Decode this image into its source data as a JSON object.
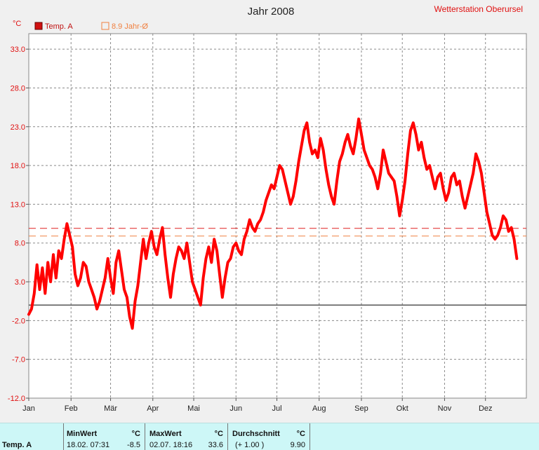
{
  "chart_data": {
    "type": "line",
    "title": "Jahr 2008",
    "station": "Wetterstation Oberursel",
    "yunit": "°C",
    "ylim": [
      -12,
      35
    ],
    "yticks": [
      "33.0",
      "28.0",
      "23.0",
      "18.0",
      "13.0",
      "8.0",
      "3.0",
      "-2.0",
      "-7.0",
      "-12.0"
    ],
    "ytick_values": [
      33,
      28,
      23,
      18,
      13,
      8,
      3,
      -2,
      -7,
      -12
    ],
    "months": [
      "Jan",
      "Feb",
      "Mär",
      "Apr",
      "Mai",
      "Jun",
      "Jul",
      "Aug",
      "Sep",
      "Okt",
      "Nov",
      "Dez"
    ],
    "zero_line": 0,
    "average_line": {
      "label": "8.9 Jahr-Ø",
      "value": 8.9,
      "color": "#f08040"
    },
    "reference_line": {
      "value": 9.9,
      "color": "#e02020"
    },
    "legend_position": "top-left",
    "grid": true,
    "series": [
      {
        "name": "Temp. A",
        "color": "#ff0000",
        "x_unit": "day_of_year",
        "points": [
          [
            1,
            -1.2
          ],
          [
            3,
            -0.5
          ],
          [
            5,
            1.5
          ],
          [
            7,
            5.2
          ],
          [
            9,
            2.0
          ],
          [
            11,
            4.8
          ],
          [
            13,
            1.5
          ],
          [
            15,
            5.5
          ],
          [
            17,
            3.0
          ],
          [
            19,
            6.5
          ],
          [
            21,
            3.5
          ],
          [
            23,
            7.0
          ],
          [
            25,
            6.0
          ],
          [
            27,
            8.5
          ],
          [
            29,
            10.5
          ],
          [
            31,
            9.0
          ],
          [
            33,
            7.5
          ],
          [
            35,
            4.0
          ],
          [
            37,
            2.5
          ],
          [
            39,
            3.5
          ],
          [
            41,
            5.5
          ],
          [
            43,
            5.0
          ],
          [
            45,
            3.0
          ],
          [
            47,
            2.0
          ],
          [
            49,
            1.0
          ],
          [
            51,
            -0.5
          ],
          [
            53,
            0.5
          ],
          [
            55,
            2.0
          ],
          [
            57,
            3.5
          ],
          [
            59,
            6.0
          ],
          [
            61,
            3.5
          ],
          [
            63,
            1.5
          ],
          [
            65,
            5.5
          ],
          [
            67,
            7.0
          ],
          [
            69,
            4.5
          ],
          [
            71,
            2.0
          ],
          [
            73,
            1.0
          ],
          [
            75,
            -1.5
          ],
          [
            77,
            -3.0
          ],
          [
            79,
            0.5
          ],
          [
            81,
            2.5
          ],
          [
            83,
            5.5
          ],
          [
            85,
            8.5
          ],
          [
            87,
            6.0
          ],
          [
            89,
            8.0
          ],
          [
            91,
            9.5
          ],
          [
            93,
            7.5
          ],
          [
            95,
            6.5
          ],
          [
            97,
            8.5
          ],
          [
            99,
            10.0
          ],
          [
            101,
            6.5
          ],
          [
            103,
            3.5
          ],
          [
            105,
            1.0
          ],
          [
            107,
            4.0
          ],
          [
            109,
            6.0
          ],
          [
            111,
            7.5
          ],
          [
            113,
            7.0
          ],
          [
            115,
            6.0
          ],
          [
            117,
            8.0
          ],
          [
            119,
            5.5
          ],
          [
            121,
            3.0
          ],
          [
            123,
            2.0
          ],
          [
            125,
            1.0
          ],
          [
            127,
            0.0
          ],
          [
            129,
            3.5
          ],
          [
            131,
            6.0
          ],
          [
            133,
            7.5
          ],
          [
            135,
            5.5
          ],
          [
            137,
            8.5
          ],
          [
            139,
            7.0
          ],
          [
            141,
            4.0
          ],
          [
            143,
            1.0
          ],
          [
            145,
            3.5
          ],
          [
            147,
            5.5
          ],
          [
            149,
            6.0
          ],
          [
            151,
            7.5
          ],
          [
            153,
            8.0
          ],
          [
            155,
            7.0
          ],
          [
            157,
            6.5
          ],
          [
            159,
            8.5
          ],
          [
            161,
            9.5
          ],
          [
            163,
            11.0
          ],
          [
            165,
            10.0
          ],
          [
            167,
            9.5
          ],
          [
            169,
            10.5
          ],
          [
            171,
            11.0
          ],
          [
            173,
            12.0
          ],
          [
            175,
            13.5
          ],
          [
            177,
            14.5
          ],
          [
            179,
            15.5
          ],
          [
            181,
            15.0
          ],
          [
            183,
            16.5
          ],
          [
            185,
            18.0
          ],
          [
            187,
            17.5
          ],
          [
            189,
            16.0
          ],
          [
            191,
            14.5
          ],
          [
            193,
            13.0
          ],
          [
            195,
            14.0
          ],
          [
            197,
            16.0
          ],
          [
            199,
            18.5
          ],
          [
            201,
            20.5
          ],
          [
            203,
            22.5
          ],
          [
            205,
            23.5
          ],
          [
            207,
            21.0
          ],
          [
            209,
            19.5
          ],
          [
            211,
            20.0
          ],
          [
            213,
            19.0
          ],
          [
            215,
            21.5
          ],
          [
            217,
            20.0
          ],
          [
            219,
            17.5
          ],
          [
            221,
            15.5
          ],
          [
            223,
            14.0
          ],
          [
            225,
            13.0
          ],
          [
            227,
            16.0
          ],
          [
            229,
            18.5
          ],
          [
            231,
            19.5
          ],
          [
            233,
            21.0
          ],
          [
            235,
            22.0
          ],
          [
            237,
            20.5
          ],
          [
            239,
            19.5
          ],
          [
            241,
            21.5
          ],
          [
            243,
            24.0
          ],
          [
            245,
            22.0
          ],
          [
            247,
            20.0
          ],
          [
            249,
            19.0
          ],
          [
            251,
            18.0
          ],
          [
            253,
            17.5
          ],
          [
            255,
            16.5
          ],
          [
            257,
            15.0
          ],
          [
            259,
            17.0
          ],
          [
            261,
            20.0
          ],
          [
            263,
            18.5
          ],
          [
            265,
            17.0
          ],
          [
            267,
            16.5
          ],
          [
            269,
            16.0
          ],
          [
            271,
            14.0
          ],
          [
            273,
            11.5
          ],
          [
            275,
            13.5
          ],
          [
            277,
            16.0
          ],
          [
            279,
            19.5
          ],
          [
            281,
            22.5
          ],
          [
            283,
            23.5
          ],
          [
            285,
            22.0
          ],
          [
            287,
            20.0
          ],
          [
            289,
            21.0
          ],
          [
            291,
            19.0
          ],
          [
            293,
            17.5
          ],
          [
            295,
            18.0
          ],
          [
            297,
            16.5
          ],
          [
            299,
            15.0
          ],
          [
            301,
            16.5
          ],
          [
            303,
            17.0
          ],
          [
            305,
            15.0
          ],
          [
            307,
            13.5
          ],
          [
            309,
            14.5
          ],
          [
            311,
            16.5
          ],
          [
            313,
            17.0
          ],
          [
            315,
            15.5
          ],
          [
            317,
            16.0
          ],
          [
            319,
            14.0
          ],
          [
            321,
            12.5
          ],
          [
            323,
            14.0
          ],
          [
            325,
            15.5
          ],
          [
            327,
            17.0
          ],
          [
            329,
            19.5
          ],
          [
            331,
            18.5
          ],
          [
            333,
            17.0
          ],
          [
            335,
            14.5
          ],
          [
            337,
            12.0
          ],
          [
            339,
            10.5
          ],
          [
            341,
            9.0
          ],
          [
            343,
            8.5
          ],
          [
            345,
            9.0
          ],
          [
            347,
            10.0
          ],
          [
            349,
            11.5
          ],
          [
            351,
            11.0
          ],
          [
            353,
            9.5
          ],
          [
            355,
            10.0
          ],
          [
            357,
            8.5
          ],
          [
            359,
            6.0
          ]
        ]
      }
    ]
  },
  "legend": {
    "series_label": "Temp. A",
    "average_label": "8.9 Jahr-Ø"
  },
  "footer": {
    "row_label": "Temp. A",
    "min": {
      "header": "MinWert",
      "unit": "°C",
      "time": "18.02.  07:31",
      "value": "-8.5"
    },
    "max": {
      "header": "MaxWert",
      "unit": "°C",
      "time": "02.07.  18:16",
      "value": "33.6"
    },
    "avg": {
      "header": "Durchschnitt",
      "unit": "°C",
      "offset": "(+ 1.00 )",
      "value": "9.90"
    }
  }
}
